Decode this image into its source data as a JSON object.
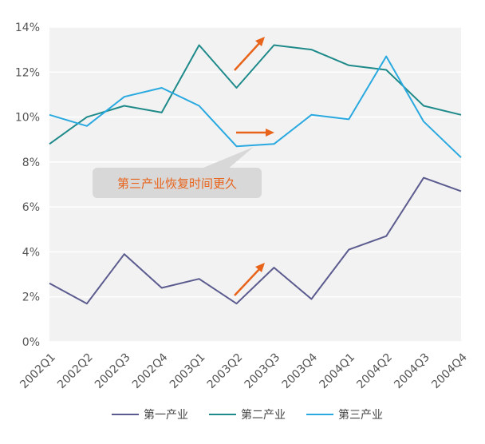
{
  "chart_data": {
    "type": "line",
    "title": "",
    "xlabel": "",
    "ylabel": "",
    "ylim": [
      0,
      14
    ],
    "y_ticks": [
      "0%",
      "2%",
      "4%",
      "6%",
      "8%",
      "10%",
      "12%",
      "14%"
    ],
    "categories": [
      "2002Q1",
      "2002Q2",
      "2002Q3",
      "2002Q4",
      "2003Q1",
      "2003Q2",
      "2003Q3",
      "2003Q4",
      "2004Q1",
      "2004Q2",
      "2004Q3",
      "2004Q4"
    ],
    "series": [
      {
        "name": "第一产业",
        "color": "#5b5b8f",
        "values": [
          2.6,
          1.7,
          3.9,
          2.4,
          2.8,
          1.7,
          3.3,
          1.9,
          4.1,
          4.7,
          7.3,
          6.7
        ]
      },
      {
        "name": "第二产业",
        "color": "#1f8a8a",
        "values": [
          8.8,
          10.0,
          10.5,
          10.2,
          13.2,
          11.3,
          13.2,
          13.0,
          12.3,
          12.1,
          10.5,
          10.1
        ]
      },
      {
        "name": "第三产业",
        "color": "#29a9e0",
        "values": [
          10.1,
          9.6,
          10.9,
          11.3,
          10.5,
          8.7,
          8.8,
          10.1,
          9.9,
          12.7,
          9.8,
          8.2
        ]
      }
    ],
    "grid": "horizontal",
    "legend_position": "bottom",
    "annotation": {
      "text": "第三产业恢复时间更久",
      "color": "#e8641b"
    },
    "arrow_color": "#e8641b"
  }
}
